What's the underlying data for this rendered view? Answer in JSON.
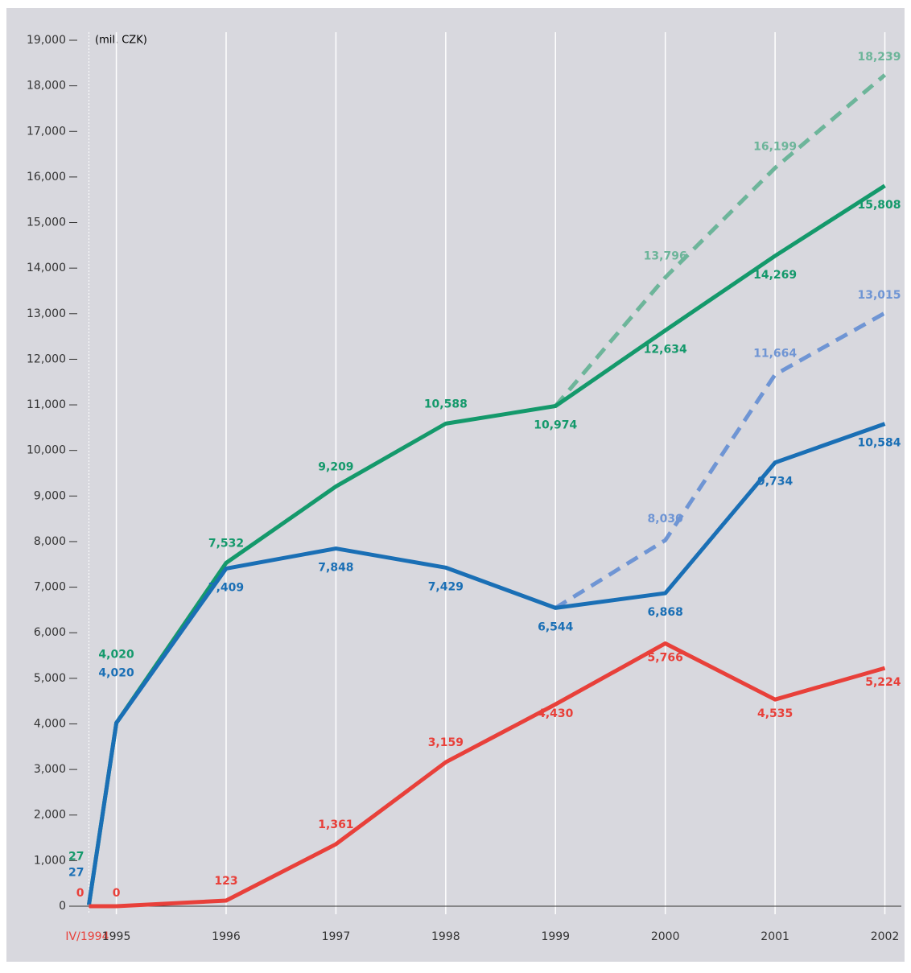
{
  "chart_data": {
    "type": "line",
    "y_axis_label": "(mil. CZK)",
    "x": [
      1994.75,
      1995,
      1996,
      1997,
      1998,
      1999,
      2000,
      2001,
      2002
    ],
    "xlim": [
      1994.6,
      2002.15
    ],
    "xticks": [
      {
        "value": 1994.75,
        "label": "IV/1994"
      },
      1995,
      1996,
      1997,
      1998,
      1999,
      2000,
      2001,
      2002
    ],
    "ylim": [
      0,
      19000
    ],
    "yticks": [
      0,
      {
        "value": 1000,
        "label": "1,000"
      },
      {
        "value": 2000,
        "label": "2,000"
      },
      {
        "value": 3000,
        "label": "3,000"
      },
      {
        "value": 4000,
        "label": "4,000"
      },
      {
        "value": 5000,
        "label": "5,000"
      },
      {
        "value": 6000,
        "label": "6,000"
      },
      {
        "value": 7000,
        "label": "7,000"
      },
      {
        "value": 8000,
        "label": "8,000"
      },
      {
        "value": 9000,
        "label": "9,000"
      },
      {
        "value": 10000,
        "label": "10,000"
      },
      {
        "value": 11000,
        "label": "11,000"
      },
      {
        "value": 12000,
        "label": "12,000"
      },
      {
        "value": 13000,
        "label": "13,000"
      },
      {
        "value": 14000,
        "label": "14,000"
      },
      {
        "value": 15000,
        "label": "15,000"
      },
      {
        "value": 16000,
        "label": "16,000"
      },
      {
        "value": 17000,
        "label": "17,000"
      },
      {
        "value": 18000,
        "label": "18,000"
      },
      {
        "value": 19000,
        "label": "19,000"
      }
    ],
    "grid": true,
    "series": [
      {
        "color": "#6db59a",
        "dashed": true,
        "values": [
          null,
          null,
          null,
          null,
          null,
          10974,
          13796,
          16199,
          18239
        ],
        "value_labels": [
          null,
          null,
          null,
          null,
          null,
          null,
          "13,796",
          "16,199",
          "18,239"
        ]
      },
      {
        "color": "#6f95d4",
        "dashed": true,
        "values": [
          null,
          null,
          null,
          null,
          null,
          6544,
          8030,
          11664,
          13015
        ],
        "value_labels": [
          null,
          null,
          null,
          null,
          null,
          null,
          "8,030",
          "11,664",
          "13,015"
        ]
      },
      {
        "color": "#14996b",
        "values": [
          27,
          4020,
          7532,
          9209,
          10588,
          10974,
          12634,
          14269,
          15808
        ],
        "value_labels": [
          "27",
          "4,020",
          "7,532",
          "9,209",
          "10,588",
          "10,974",
          "12,634",
          "14,269",
          "15,808"
        ]
      },
      {
        "color": "#1a6fb5",
        "values": [
          27,
          4020,
          7409,
          7848,
          7429,
          6544,
          6868,
          9734,
          10584
        ],
        "value_labels": [
          "27",
          "4,020",
          "7,409",
          "7,848",
          "7,429",
          "6,544",
          "6,868",
          "9,734",
          "10,584"
        ]
      },
      {
        "color": "#e8403a",
        "values": [
          0,
          0,
          123,
          1361,
          3159,
          4430,
          5766,
          4535,
          5224
        ],
        "value_labels": [
          "0",
          "0",
          "123",
          "1,361",
          "3,159",
          "4,430",
          "5,766",
          "4,535",
          "5,224"
        ]
      }
    ]
  }
}
